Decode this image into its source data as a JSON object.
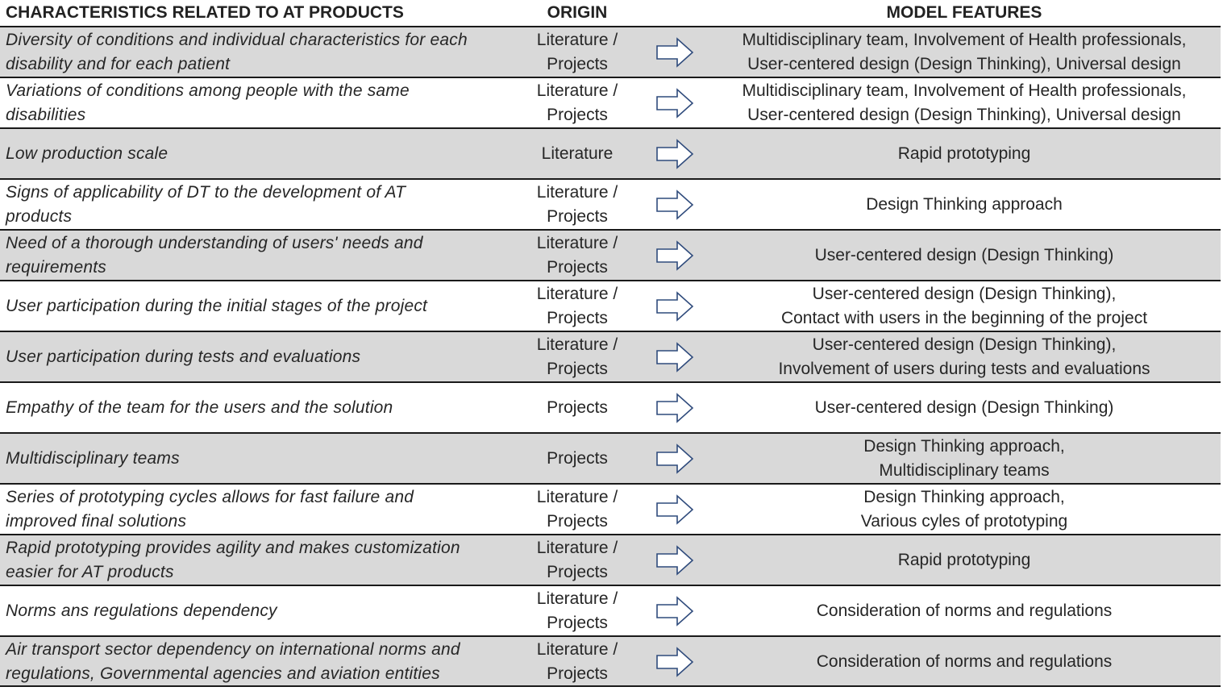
{
  "headers": {
    "characteristics": "CHARACTERISTICS RELATED TO AT PRODUCTS",
    "origin": "ORIGIN",
    "features": "MODEL FEATURES"
  },
  "rows": [
    {
      "characteristic": "Diversity of conditions and individual characteristics for each\ndisability and for each patient",
      "origin": "Literature /\nProjects",
      "features": "Multidisciplinary team, Involvement of Health professionals,\nUser-centered design (Design Thinking), Universal design"
    },
    {
      "characteristic": "Variations of conditions among people with the same\ndisabilities",
      "origin": "Literature /\nProjects",
      "features": "Multidisciplinary team, Involvement of Health professionals,\nUser-centered design (Design Thinking), Universal design"
    },
    {
      "characteristic": "Low production scale",
      "origin": "Literature",
      "features": "Rapid prototyping"
    },
    {
      "characteristic": "Signs of applicability of DT to the development of AT\nproducts",
      "origin": "Literature /\nProjects",
      "features": "Design Thinking approach"
    },
    {
      "characteristic": "Need of a thorough understanding of users' needs and\nrequirements",
      "origin": "Literature /\nProjects",
      "features": "User-centered design (Design Thinking)"
    },
    {
      "characteristic": "User participation during the initial stages of the project",
      "origin": "Literature /\nProjects",
      "features": "User-centered design (Design Thinking),\nContact with users in the beginning of the project"
    },
    {
      "characteristic": "User participation during tests and evaluations",
      "origin": "Literature /\nProjects",
      "features": "User-centered design (Design Thinking),\nInvolvement of users during tests and evaluations"
    },
    {
      "characteristic": "Empathy of the team for the users and the solution",
      "origin": "Projects",
      "features": "User-centered design (Design Thinking)"
    },
    {
      "characteristic": "Multidisciplinary teams",
      "origin": "Projects",
      "features": "Design Thinking approach,\nMultidisciplinary teams"
    },
    {
      "characteristic": "Series of prototyping cycles allows for fast failure and\nimproved final solutions",
      "origin": "Literature /\nProjects",
      "features": "Design Thinking approach,\nVarious cyles of prototyping"
    },
    {
      "characteristic": "Rapid prototyping provides agility and makes customization\neasier for AT products",
      "origin": "Literature /\nProjects",
      "features": "Rapid prototyping"
    },
    {
      "characteristic": "Norms ans regulations dependency",
      "origin": "Literature /\nProjects",
      "features": "Consideration of norms and regulations"
    },
    {
      "characteristic": "Air transport sector dependency on international norms and\nregulations, Governmental agencies and aviation entities",
      "origin": "Literature /\nProjects",
      "features": "Consideration of norms and regulations"
    }
  ],
  "colors": {
    "shaded_row": "#d9d9d9",
    "arrow_stroke": "#2f4b7c",
    "rule": "#1a1a1a"
  },
  "icons": {
    "arrow": "right-arrow-outline-icon"
  }
}
